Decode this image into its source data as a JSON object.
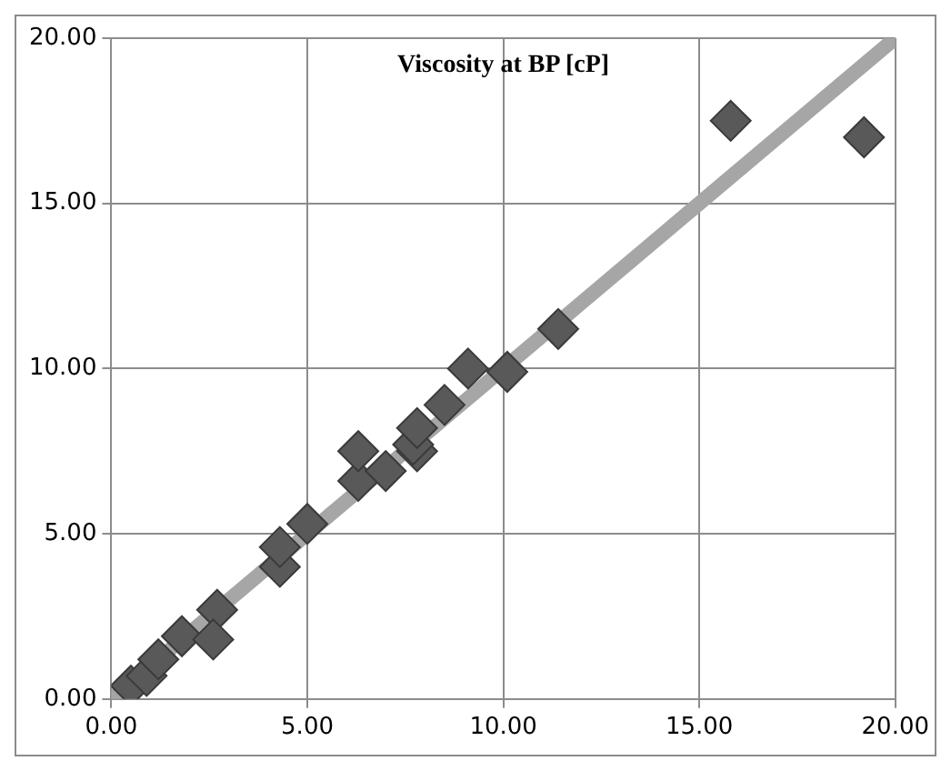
{
  "chart_data": {
    "type": "scatter",
    "title": "Viscosity at BP [cP]",
    "xlim": [
      0,
      20
    ],
    "ylim": [
      0,
      20
    ],
    "xticks": [
      {
        "value": 0,
        "label": "0.00"
      },
      {
        "value": 5,
        "label": "5.00"
      },
      {
        "value": 10,
        "label": "10.00"
      },
      {
        "value": 15,
        "label": "15.00"
      },
      {
        "value": 20,
        "label": "20.00"
      }
    ],
    "yticks": [
      {
        "value": 0,
        "label": "0.00"
      },
      {
        "value": 5,
        "label": "5.00"
      },
      {
        "value": 10,
        "label": "10.00"
      },
      {
        "value": 15,
        "label": "15.00"
      },
      {
        "value": 20,
        "label": "20.00"
      }
    ],
    "grid": true,
    "legend": false,
    "marker": "diamond",
    "series": [
      {
        "type": "line",
        "color": "#a6a6a6",
        "x": [
          0,
          20
        ],
        "values": [
          0,
          20
        ],
        "marker": "none"
      },
      {
        "color": "#595959",
        "x": [
          0.5,
          0.9,
          1.2,
          1.8,
          2.7,
          2.6,
          4.3,
          4.3,
          5.0,
          6.3,
          7.0,
          6.3,
          7.8,
          7.7,
          9.1,
          10.1,
          11.4,
          8.5,
          7.8,
          15.8,
          19.2
        ],
        "values": [
          0.4,
          0.7,
          1.2,
          1.9,
          2.7,
          1.8,
          4.0,
          4.6,
          5.3,
          6.6,
          6.9,
          7.5,
          7.5,
          7.7,
          10.0,
          9.9,
          11.2,
          8.9,
          8.2,
          17.5,
          17.0
        ]
      }
    ]
  }
}
